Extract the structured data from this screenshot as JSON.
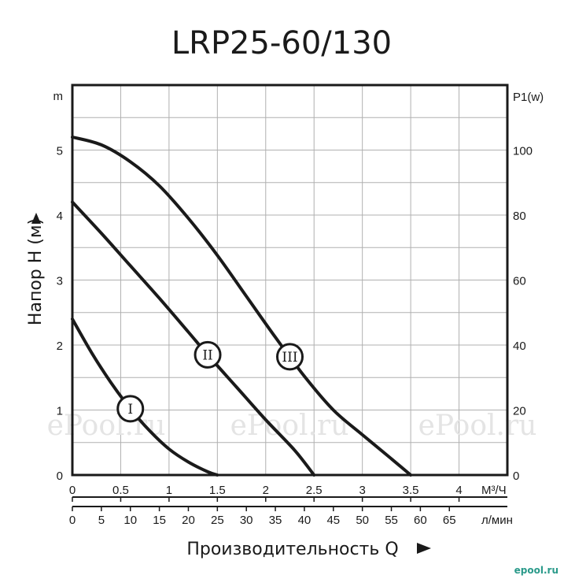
{
  "chart_data": {
    "type": "line",
    "title": "LRP25-60/130",
    "ylabel": "Напор H (м)",
    "xlabel": "Производительность Q",
    "left_axis_unit": "m",
    "right_axis_unit": "P1(w)",
    "ylim": [
      0,
      6
    ],
    "y_ticks": [
      "0",
      "1",
      "2",
      "3",
      "4",
      "5"
    ],
    "right_ticks": [
      "0",
      "20",
      "40",
      "60",
      "80",
      "100"
    ],
    "x_m3h": {
      "unit": "М³/Ч",
      "ticks": [
        "0",
        "0.5",
        "1",
        "1.5",
        "2",
        "2.5",
        "3",
        "3.5",
        "4"
      ]
    },
    "x_lmin": {
      "unit": "л/мин",
      "ticks": [
        "0",
        "5",
        "10",
        "15",
        "20",
        "25",
        "30",
        "35",
        "40",
        "45",
        "50",
        "55",
        "60",
        "65"
      ]
    },
    "xlim": [
      0,
      4.5
    ],
    "grid": true,
    "series": [
      {
        "name": "I",
        "points": [
          [
            0,
            2.4
          ],
          [
            0.2,
            1.88
          ],
          [
            0.4,
            1.42
          ],
          [
            0.6,
            1.02
          ],
          [
            0.8,
            0.68
          ],
          [
            1.0,
            0.4
          ],
          [
            1.2,
            0.2
          ],
          [
            1.4,
            0.05
          ],
          [
            1.5,
            0
          ]
        ]
      },
      {
        "name": "II",
        "points": [
          [
            0,
            4.2
          ],
          [
            0.3,
            3.72
          ],
          [
            0.6,
            3.22
          ],
          [
            0.9,
            2.72
          ],
          [
            1.2,
            2.2
          ],
          [
            1.4,
            1.85
          ],
          [
            1.7,
            1.35
          ],
          [
            2.0,
            0.85
          ],
          [
            2.3,
            0.38
          ],
          [
            2.5,
            0
          ]
        ]
      },
      {
        "name": "III",
        "points": [
          [
            0,
            5.2
          ],
          [
            0.3,
            5.08
          ],
          [
            0.6,
            4.82
          ],
          [
            0.9,
            4.45
          ],
          [
            1.2,
            3.95
          ],
          [
            1.5,
            3.38
          ],
          [
            1.8,
            2.75
          ],
          [
            2.1,
            2.12
          ],
          [
            2.4,
            1.52
          ],
          [
            2.7,
            1.0
          ],
          [
            3.0,
            0.62
          ],
          [
            3.3,
            0.25
          ],
          [
            3.5,
            0
          ]
        ]
      }
    ],
    "watermark": "ePool.ru"
  },
  "footer": {
    "corner_logo": "epool.ru"
  }
}
